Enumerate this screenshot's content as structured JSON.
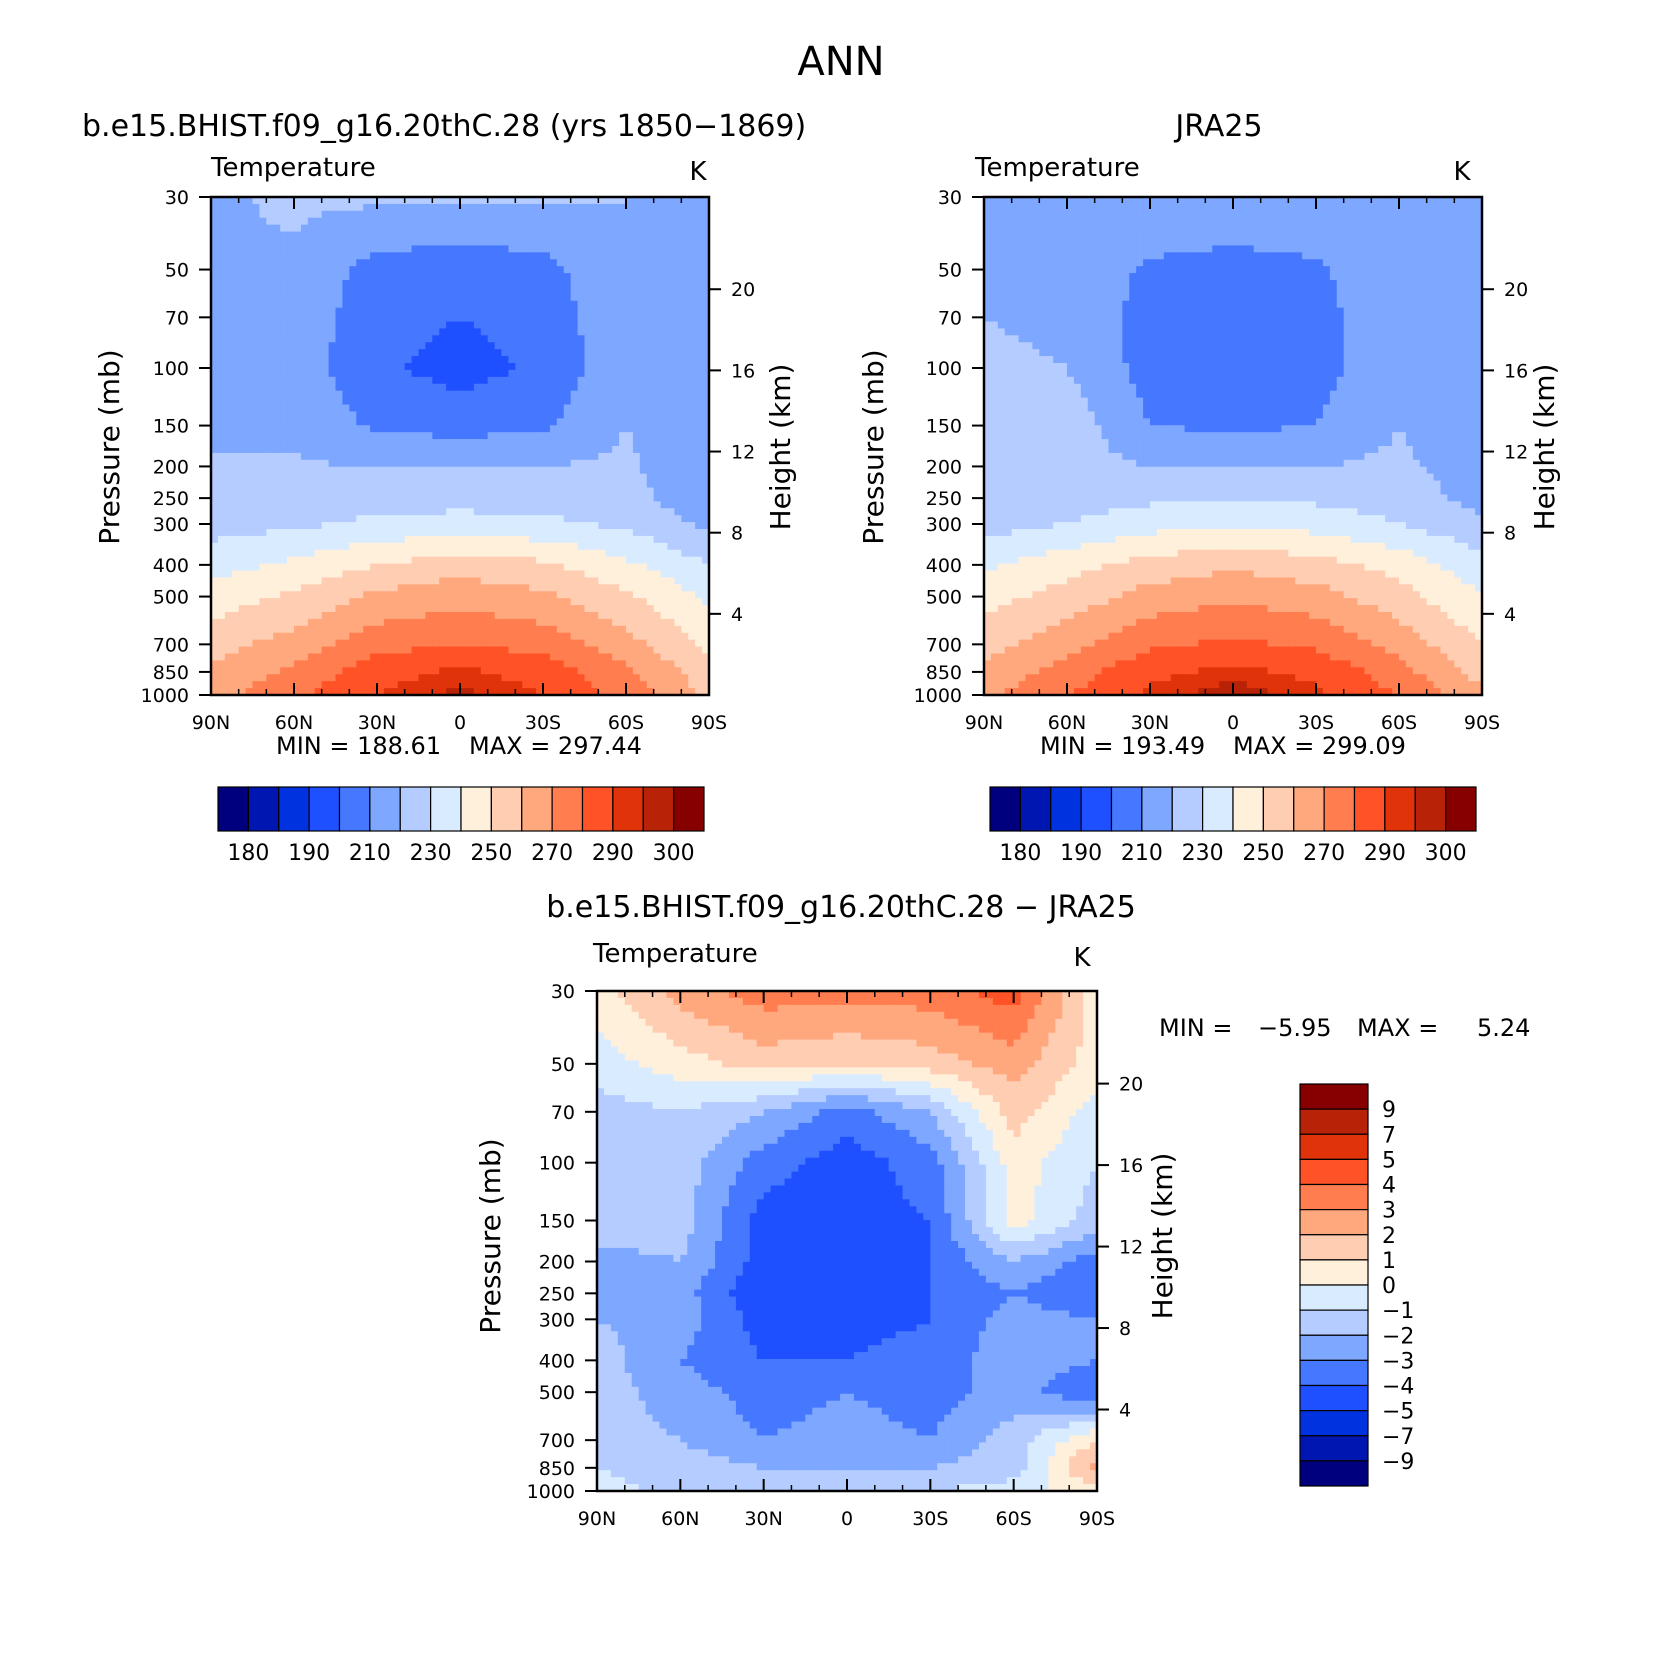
{
  "figure_title": "ANN",
  "colors": {
    "abs_scale": [
      "#00007f",
      "#0016b0",
      "#0032e0",
      "#1e50ff",
      "#4678ff",
      "#7ea7ff",
      "#b4ccff",
      "#d9ebff",
      "#fff0dc",
      "#ffcdb1",
      "#ffa87e",
      "#ff7d4f",
      "#ff5226",
      "#e0330a",
      "#b82206",
      "#870000"
    ],
    "diff_scale": [
      "#00007f",
      "#0016b0",
      "#0032e0",
      "#1e50ff",
      "#4678ff",
      "#7ea7ff",
      "#b4ccff",
      "#d9ebff",
      "#fff0dc",
      "#ffcdb1",
      "#ffa87e",
      "#ff7d4f",
      "#ff5226",
      "#e0330a",
      "#b82206",
      "#870000"
    ]
  },
  "chart_data": [
    {
      "type": "heatmap",
      "title": "b.e15.BHIST.f09_g16.20thC.28 (yrs 1850−1869)",
      "subtitle": "Temperature",
      "units": "K",
      "xlabel": "",
      "ylabel": "Pressure (mb)",
      "y2label": "Height (km)",
      "xticks": [
        "90N",
        "60N",
        "30N",
        "0",
        "30S",
        "60S",
        "90S"
      ],
      "yticks": [
        "30",
        "50",
        "70",
        "100",
        "150",
        "200",
        "250",
        "300",
        "400",
        "500",
        "700",
        "850",
        "1000"
      ],
      "y2ticks": [
        "20",
        "16",
        "12",
        "8",
        "4"
      ],
      "min_label": "MIN = 188.61",
      "max_label": "MAX = 297.44",
      "min": 188.61,
      "max": 297.44,
      "colorbar_labels": [
        "180",
        "190",
        "210",
        "230",
        "250",
        "270",
        "290",
        "300"
      ],
      "field": {
        "lat": [
          90,
          60,
          30,
          0,
          -30,
          -60,
          -90
        ],
        "levels": [
          30,
          50,
          70,
          100,
          150,
          200,
          250,
          300,
          400,
          500,
          700,
          850,
          1000
        ],
        "values": [
          [
            218,
            222,
            222,
            222,
            222,
            220,
            212
          ],
          [
            220,
            218,
            206,
            204,
            206,
            220,
            212
          ],
          [
            220,
            216,
            204,
            200,
            204,
            218,
            212
          ],
          [
            220,
            216,
            202,
            196,
            202,
            218,
            212
          ],
          [
            220,
            218,
            208,
            206,
            208,
            220,
            212
          ],
          [
            220,
            221,
            220,
            220,
            220,
            222,
            210
          ],
          [
            222,
            224,
            226,
            226,
            226,
            224,
            212
          ],
          [
            226,
            228,
            232,
            234,
            232,
            228,
            218
          ],
          [
            236,
            242,
            250,
            256,
            252,
            242,
            230
          ],
          [
            244,
            252,
            262,
            266,
            262,
            252,
            238
          ],
          [
            256,
            264,
            276,
            280,
            276,
            264,
            248
          ],
          [
            262,
            272,
            286,
            292,
            286,
            272,
            254
          ],
          [
            266,
            278,
            290,
            297,
            290,
            276,
            258
          ]
        ]
      }
    },
    {
      "type": "heatmap",
      "title": "JRA25",
      "subtitle": "Temperature",
      "units": "K",
      "xlabel": "",
      "ylabel": "Pressure (mb)",
      "y2label": "Height (km)",
      "xticks": [
        "90N",
        "60N",
        "30N",
        "0",
        "30S",
        "60S",
        "90S"
      ],
      "yticks": [
        "30",
        "50",
        "70",
        "100",
        "150",
        "200",
        "250",
        "300",
        "400",
        "500",
        "700",
        "850",
        "1000"
      ],
      "y2ticks": [
        "20",
        "16",
        "12",
        "8",
        "4"
      ],
      "min_label": "MIN = 193.49",
      "max_label": "MAX = 299.09",
      "min": 193.49,
      "max": 299.09,
      "colorbar_labels": [
        "180",
        "190",
        "210",
        "230",
        "250",
        "270",
        "290",
        "300"
      ],
      "field": {
        "lat": [
          90,
          60,
          30,
          0,
          -30,
          -60,
          -90
        ],
        "levels": [
          30,
          50,
          70,
          100,
          150,
          200,
          250,
          300,
          400,
          500,
          700,
          850,
          1000
        ],
        "values": [
          [
            218,
            220,
            220,
            218,
            220,
            220,
            212
          ],
          [
            220,
            218,
            208,
            206,
            208,
            220,
            212
          ],
          [
            220,
            218,
            206,
            202,
            206,
            218,
            212
          ],
          [
            222,
            220,
            206,
            202,
            206,
            218,
            212
          ],
          [
            226,
            226,
            210,
            208,
            210,
            220,
            212
          ],
          [
            226,
            224,
            220,
            220,
            220,
            222,
            214
          ],
          [
            222,
            226,
            228,
            228,
            228,
            226,
            216
          ],
          [
            226,
            230,
            236,
            238,
            236,
            230,
            222
          ],
          [
            238,
            246,
            254,
            258,
            254,
            246,
            234
          ],
          [
            246,
            254,
            264,
            268,
            264,
            254,
            240
          ],
          [
            256,
            266,
            278,
            282,
            278,
            266,
            250
          ],
          [
            262,
            274,
            288,
            292,
            288,
            274,
            256
          ],
          [
            268,
            280,
            292,
            299,
            292,
            280,
            262
          ]
        ]
      }
    },
    {
      "type": "heatmap",
      "title": "b.e15.BHIST.f09_g16.20thC.28 − JRA25",
      "subtitle": "Temperature",
      "units": "K",
      "xlabel": "",
      "ylabel": "Pressure (mb)",
      "y2label": "Height (km)",
      "xticks": [
        "90N",
        "60N",
        "30N",
        "0",
        "30S",
        "60S",
        "90S"
      ],
      "yticks": [
        "30",
        "50",
        "70",
        "100",
        "150",
        "200",
        "250",
        "300",
        "400",
        "500",
        "700",
        "850",
        "1000"
      ],
      "y2ticks": [
        "20",
        "16",
        "12",
        "8",
        "4"
      ],
      "min_label_name": "MIN =",
      "min_label_value": "−5.95",
      "max_label_name": "MAX =",
      "max_label_value": "5.24",
      "min": -5.95,
      "max": 5.24,
      "colorbar_labels": [
        "9",
        "7",
        "5",
        "4",
        "3",
        "2",
        "1",
        "0",
        "−1",
        "−2",
        "−3",
        "−4",
        "−5",
        "−7",
        "−9"
      ],
      "field": {
        "lat": [
          90,
          60,
          30,
          0,
          -30,
          -60,
          -90
        ],
        "levels": [
          30,
          50,
          70,
          100,
          150,
          200,
          250,
          300,
          400,
          500,
          700,
          850,
          1000
        ],
        "values": [
          [
            0.5,
            2.5,
            3.5,
            3.5,
            3.5,
            4.5,
            0.5
          ],
          [
            -0.5,
            0.5,
            1.5,
            1.0,
            1.5,
            2.5,
            0.5
          ],
          [
            -1.5,
            -1.0,
            -2.0,
            -3.5,
            -2.0,
            1.5,
            -0.5
          ],
          [
            -1.5,
            -1.5,
            -3.5,
            -4.5,
            -3.5,
            0.5,
            -1.0
          ],
          [
            -1.0,
            -1.5,
            -4.5,
            -4.5,
            -4.0,
            0.5,
            -1.5
          ],
          [
            -2.5,
            -2.0,
            -4.5,
            -4.5,
            -4.0,
            -2.0,
            -3.5
          ],
          [
            -3.0,
            -2.5,
            -5.0,
            -4.5,
            -4.0,
            -3.0,
            -4.0
          ],
          [
            -2.0,
            -2.5,
            -4.5,
            -4.5,
            -4.0,
            -2.5,
            -3.0
          ],
          [
            -1.5,
            -3.0,
            -4.0,
            -4.0,
            -3.5,
            -2.5,
            -3.0
          ],
          [
            -1.5,
            -2.5,
            -3.5,
            -3.0,
            -3.5,
            -2.5,
            -4.0
          ],
          [
            -1.5,
            -2.0,
            -3.0,
            -2.5,
            -3.0,
            -1.5,
            1.0
          ],
          [
            -1.0,
            -1.5,
            -2.0,
            -2.0,
            -2.0,
            -1.5,
            2.5
          ],
          [
            -0.5,
            -1.5,
            -1.0,
            -1.5,
            -1.0,
            -0.5,
            0.5
          ]
        ]
      }
    }
  ]
}
